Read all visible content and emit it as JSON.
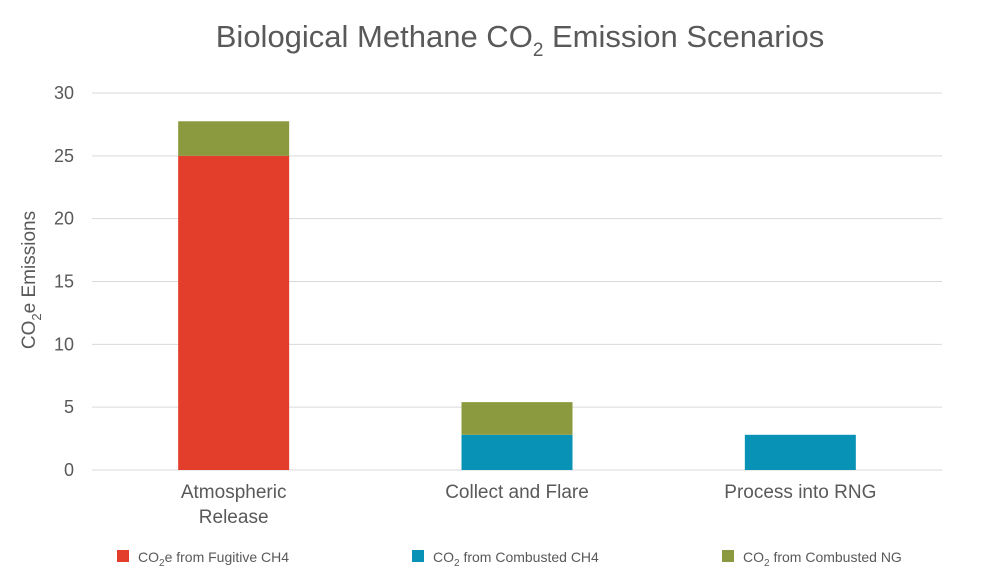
{
  "chart_data": {
    "type": "bar",
    "stacked": true,
    "title": "Biological Methane CO2 Emission Scenarios",
    "title_parts": {
      "before": "Biological Methane CO",
      "sub": "2",
      "after": " Emission Scenarios"
    },
    "ylabel": "CO2e Emissions",
    "ylabel_parts": {
      "before": "CO",
      "sub": "2",
      "after": "e Emissions"
    },
    "xlabel": "",
    "ylim": [
      0,
      30
    ],
    "yticks": [
      0,
      5,
      10,
      15,
      20,
      25,
      30
    ],
    "grid": true,
    "legend_position": "bottom",
    "categories": [
      [
        "Atmospheric",
        "Release"
      ],
      [
        "Collect and Flare"
      ],
      [
        "Process into RNG"
      ]
    ],
    "series": [
      {
        "name": "CO2e from Fugitive CH4",
        "name_parts": {
          "before": "CO",
          "sub": "2",
          "after": "e from Fugitive CH4"
        },
        "color": "#e33d2b",
        "values": [
          25,
          0,
          0
        ]
      },
      {
        "name": "CO2 from Combusted CH4",
        "name_parts": {
          "before": "CO",
          "sub": "2",
          "after": " from Combusted CH4"
        },
        "color": "#0892b5",
        "values": [
          0,
          2.8,
          2.8
        ]
      },
      {
        "name": "CO2 from Combusted NG",
        "name_parts": {
          "before": "CO",
          "sub": "2",
          "after": " from Combusted NG"
        },
        "color": "#8b9a3e",
        "values": [
          2.75,
          2.6,
          0
        ]
      }
    ]
  }
}
